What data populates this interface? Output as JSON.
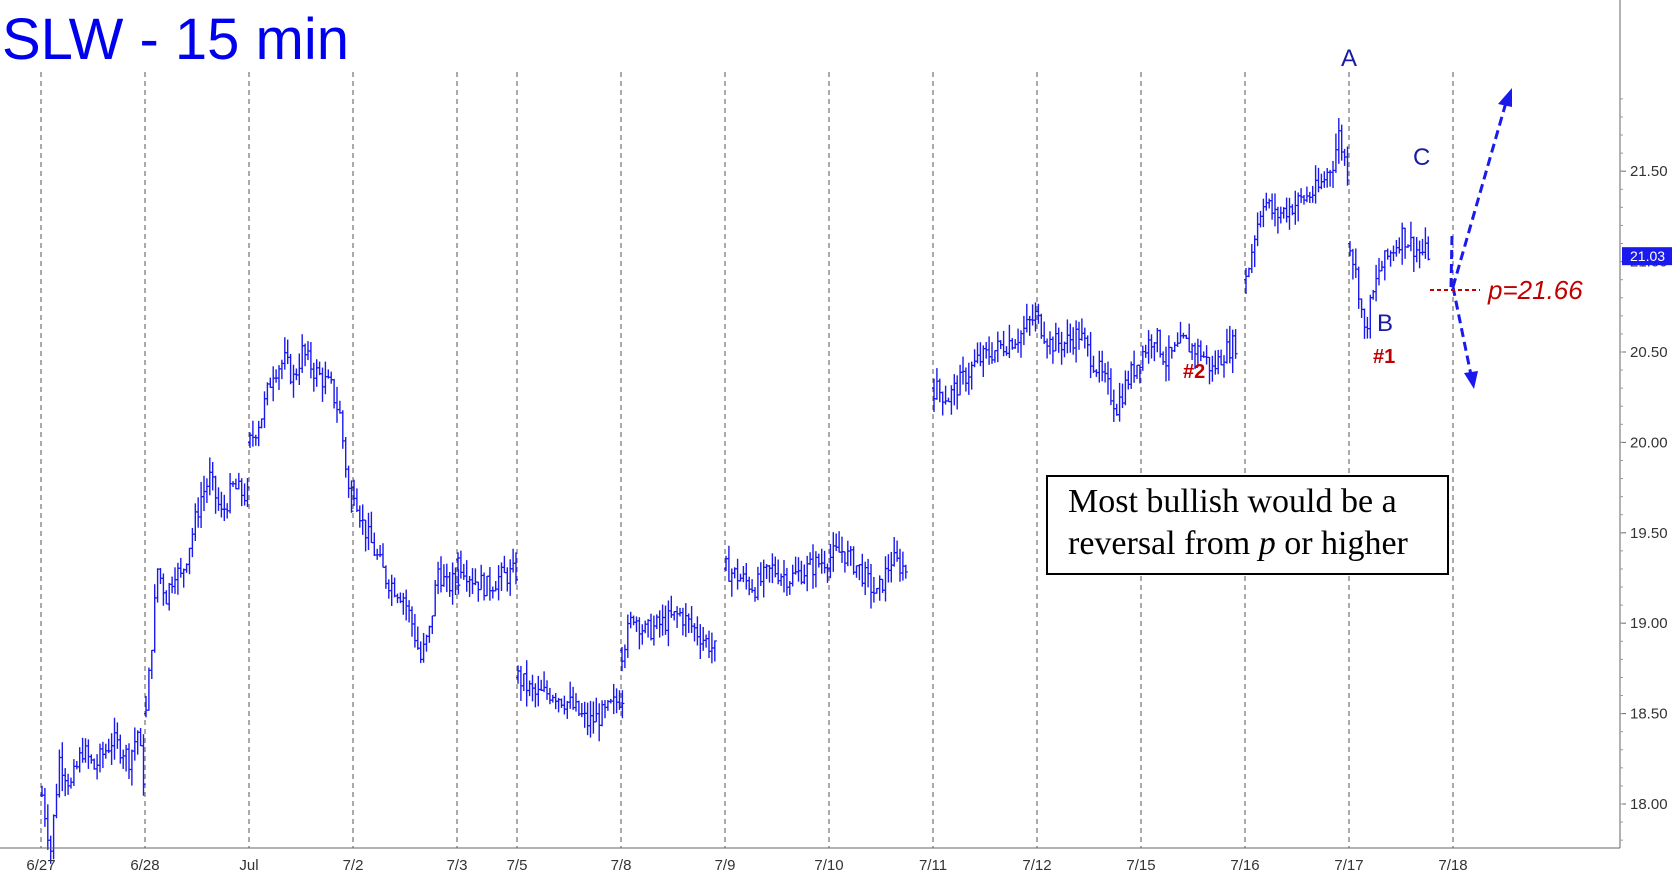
{
  "chart_data": {
    "type": "ohlc",
    "title": "SLW - 15 min",
    "title_color": "#0000ee",
    "bar_color": "#1a1aee",
    "annotation_color": "#c00000",
    "ylim": [
      17.75,
      22.1
    ],
    "y_ticks": [
      "18.00",
      "18.50",
      "19.00",
      "19.50",
      "20.00",
      "20.50",
      "21.00",
      "21.50"
    ],
    "current_price_label": "21.03",
    "current_price": 21.03,
    "x_ticks": [
      "6/27",
      "6/28",
      "Jul",
      "7/2",
      "7/3",
      "7/5",
      "7/8",
      "7/9",
      "7/10",
      "7/11",
      "7/12",
      "7/15",
      "7/16",
      "7/17",
      "7/18"
    ],
    "sessions": [
      {
        "label": "6/27",
        "points": [
          [
            0,
            18.05
          ],
          [
            3,
            17.75
          ],
          [
            6,
            18.25
          ],
          [
            10,
            18.1
          ],
          [
            14,
            18.3
          ],
          [
            18,
            18.2
          ],
          [
            24,
            18.35
          ],
          [
            28,
            18.3
          ],
          [
            30,
            18.25
          ],
          [
            33,
            18.4
          ],
          [
            35,
            18.15
          ]
        ]
      },
      {
        "label": "6/28",
        "points": [
          [
            0,
            18.5
          ],
          [
            2,
            18.9
          ],
          [
            4,
            19.3
          ],
          [
            7,
            19.15
          ],
          [
            10,
            19.3
          ],
          [
            12,
            19.25
          ],
          [
            16,
            19.5
          ],
          [
            19,
            19.7
          ],
          [
            22,
            19.8
          ],
          [
            26,
            19.6
          ],
          [
            30,
            19.75
          ],
          [
            35,
            19.7
          ]
        ]
      },
      {
        "label": "Jul",
        "points": [
          [
            0,
            20.0
          ],
          [
            4,
            20.15
          ],
          [
            8,
            20.4
          ],
          [
            12,
            20.45
          ],
          [
            15,
            20.35
          ],
          [
            18,
            20.5
          ],
          [
            22,
            20.4
          ],
          [
            25,
            20.35
          ],
          [
            28,
            20.3
          ],
          [
            31,
            20.15
          ],
          [
            35,
            19.6
          ]
        ]
      },
      {
        "label": "7/2",
        "points": [
          [
            0,
            19.75
          ],
          [
            3,
            19.55
          ],
          [
            7,
            19.4
          ],
          [
            11,
            19.25
          ],
          [
            14,
            19.2
          ],
          [
            17,
            19.15
          ],
          [
            20,
            19.0
          ],
          [
            23,
            18.8
          ],
          [
            26,
            18.95
          ],
          [
            29,
            19.3
          ],
          [
            32,
            19.2
          ],
          [
            36,
            19.25
          ]
        ]
      },
      {
        "label": "7/3",
        "points": [
          [
            0,
            19.35
          ],
          [
            5,
            19.25
          ],
          [
            10,
            19.2
          ],
          [
            14,
            19.25
          ],
          [
            20,
            19.28
          ]
        ]
      },
      {
        "label": "7/5",
        "points": [
          [
            0,
            18.7
          ],
          [
            6,
            18.6
          ],
          [
            12,
            18.62
          ],
          [
            18,
            18.55
          ],
          [
            24,
            18.45
          ],
          [
            30,
            18.5
          ],
          [
            36,
            18.6
          ]
        ]
      },
      {
        "label": "7/8",
        "points": [
          [
            0,
            18.85
          ],
          [
            4,
            19.05
          ],
          [
            8,
            18.95
          ],
          [
            14,
            19.0
          ],
          [
            20,
            19.05
          ],
          [
            26,
            18.95
          ],
          [
            32,
            18.85
          ]
        ]
      },
      {
        "label": "7/9",
        "points": [
          [
            0,
            19.3
          ],
          [
            5,
            19.25
          ],
          [
            10,
            19.2
          ],
          [
            16,
            19.3
          ],
          [
            22,
            19.25
          ],
          [
            28,
            19.3
          ],
          [
            34,
            19.35
          ],
          [
            40,
            19.4
          ],
          [
            46,
            19.3
          ],
          [
            52,
            19.15
          ],
          [
            57,
            19.35
          ],
          [
            62,
            19.3
          ]
        ]
      },
      {
        "label": "7/11",
        "points": [
          [
            0,
            20.3
          ],
          [
            5,
            20.25
          ],
          [
            10,
            20.35
          ],
          [
            15,
            20.45
          ],
          [
            20,
            20.5
          ],
          [
            25,
            20.55
          ],
          [
            30,
            20.6
          ],
          [
            35,
            20.7
          ],
          [
            40,
            20.55
          ],
          [
            45,
            20.55
          ],
          [
            50,
            20.6
          ],
          [
            55,
            20.45
          ],
          [
            60,
            20.3
          ],
          [
            63,
            20.2
          ],
          [
            67,
            20.35
          ],
          [
            72,
            20.5
          ],
          [
            76,
            20.6
          ],
          [
            80,
            20.45
          ],
          [
            86,
            20.55
          ],
          [
            92,
            20.5
          ],
          [
            96,
            20.4
          ],
          [
            100,
            20.5
          ],
          [
            104,
            20.55
          ]
        ]
      },
      {
        "label": "7/16",
        "points": [
          [
            0,
            20.9
          ],
          [
            3,
            21.15
          ],
          [
            6,
            21.35
          ],
          [
            10,
            21.25
          ],
          [
            15,
            21.3
          ],
          [
            20,
            21.35
          ],
          [
            25,
            21.4
          ],
          [
            30,
            21.55
          ],
          [
            32,
            21.7
          ],
          [
            35,
            21.5
          ]
        ]
      },
      {
        "label": "7/17",
        "points": [
          [
            0,
            21.1
          ],
          [
            3,
            20.85
          ],
          [
            5,
            20.6
          ],
          [
            7,
            20.75
          ],
          [
            10,
            20.95
          ],
          [
            14,
            21.05
          ],
          [
            18,
            21.15
          ],
          [
            21,
            21.1
          ],
          [
            24,
            21.05
          ],
          [
            27,
            21.05
          ]
        ]
      }
    ],
    "annotations": {
      "A": "A",
      "B": "B",
      "C": "C",
      "n1": "#1",
      "n2": "#2",
      "p_label": "p=21.66"
    },
    "note": {
      "line1": "Most bullish would be a",
      "line2_pre": "reversal from ",
      "line2_p": "p",
      "line2_post": " or higher"
    }
  }
}
